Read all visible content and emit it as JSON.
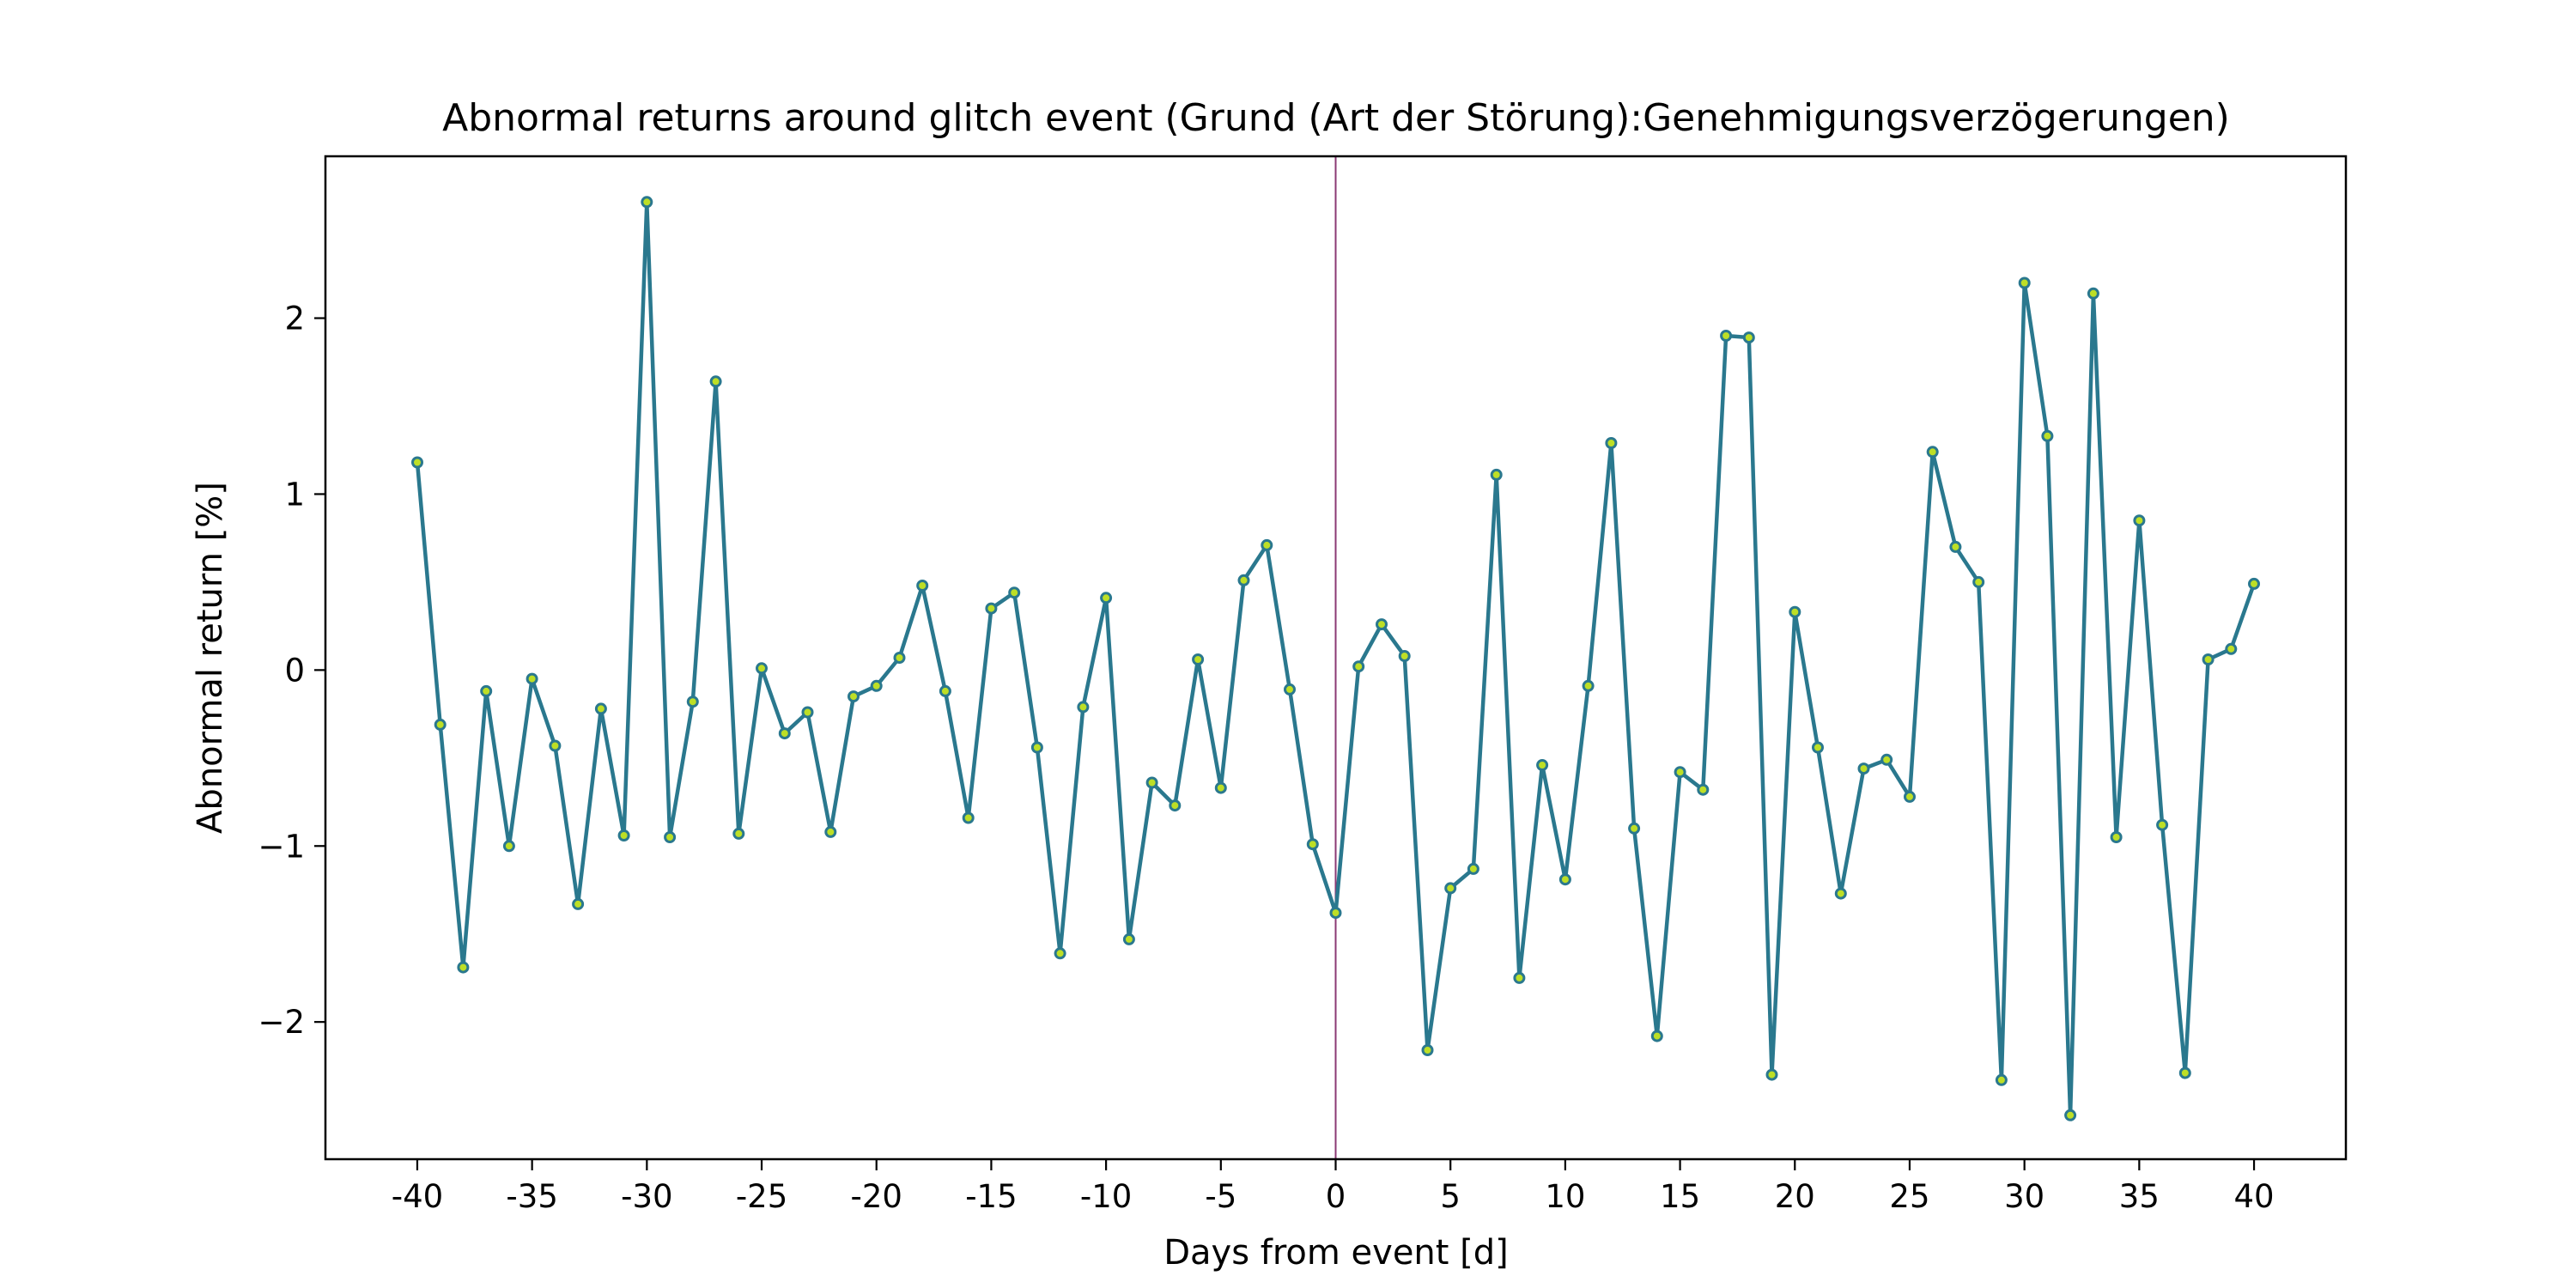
{
  "chart_data": {
    "type": "line",
    "title": "Abnormal returns around glitch event (Grund (Art der Störung):Genehmigungsverzögerungen)",
    "xlabel": "Days from event [d]",
    "ylabel": "Abnormal return [%]",
    "xlim": [
      -44,
      44
    ],
    "ylim": [
      -2.78,
      2.92
    ],
    "x_ticks": [
      -40,
      -35,
      -30,
      -25,
      -20,
      -15,
      -10,
      -5,
      0,
      5,
      10,
      15,
      20,
      25,
      30,
      35,
      40
    ],
    "x_tick_labels": [
      "-40",
      "-35",
      "-30",
      "-25",
      "-20",
      "-15",
      "-10",
      "-5",
      "0",
      "5",
      "10",
      "15",
      "20",
      "25",
      "30",
      "35",
      "40"
    ],
    "y_ticks": [
      -2,
      -1,
      0,
      1,
      2
    ],
    "y_tick_labels": [
      "−2",
      "−1",
      "0",
      "1",
      "2"
    ],
    "grid": false,
    "event_line_x": 0,
    "colors": {
      "line": "#2a788e",
      "marker_face": "#bddf26",
      "marker_edge": "#2a788e",
      "event_line": "#8b3a74"
    },
    "series": [
      {
        "x": [
          -40,
          -39,
          -38,
          -37,
          -36,
          -35,
          -34,
          -33,
          -32,
          -31,
          -30,
          -29,
          -28,
          -27,
          -26,
          -25,
          -24,
          -23,
          -22,
          -21,
          -20,
          -19,
          -18,
          -17,
          -16,
          -15,
          -14,
          -13,
          -12,
          -11,
          -10,
          -9,
          -8,
          -7,
          -6,
          -5,
          -4,
          -3,
          -2,
          -1,
          0,
          1,
          2,
          3,
          4,
          5,
          6,
          7,
          8,
          9,
          10,
          11,
          12,
          13,
          14,
          15,
          16,
          17,
          18,
          19,
          20,
          21,
          22,
          23,
          24,
          25,
          26,
          27,
          28,
          29,
          30,
          31,
          32,
          33,
          34,
          35,
          36,
          37,
          38,
          39,
          40
        ],
        "values": [
          1.18,
          -0.31,
          -1.69,
          -0.12,
          -1.0,
          -0.05,
          -0.43,
          -1.33,
          -0.22,
          -0.94,
          2.66,
          -0.95,
          -0.18,
          1.64,
          -0.93,
          0.01,
          -0.36,
          -0.24,
          -0.92,
          -0.15,
          -0.09,
          0.07,
          0.48,
          -0.12,
          -0.84,
          0.35,
          0.44,
          -0.44,
          -1.61,
          -0.21,
          0.41,
          -1.53,
          -0.64,
          -0.77,
          0.06,
          -0.67,
          0.51,
          0.71,
          -0.11,
          -0.99,
          -1.38,
          0.02,
          0.26,
          0.08,
          -2.16,
          -1.24,
          -1.13,
          1.11,
          -1.75,
          -0.54,
          -1.19,
          -0.09,
          1.29,
          -0.9,
          -2.08,
          -0.58,
          -0.68,
          1.9,
          1.89,
          -2.3,
          0.33,
          -0.44,
          -1.27,
          -0.56,
          -0.51,
          -0.72,
          1.24,
          0.7,
          0.5,
          -2.33,
          2.2,
          1.33,
          -2.53,
          2.14,
          -0.95,
          0.85,
          -0.88,
          -2.29,
          0.06,
          0.12,
          0.49
        ]
      }
    ]
  }
}
